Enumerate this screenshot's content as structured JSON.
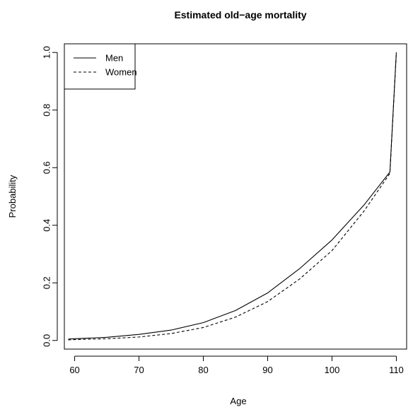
{
  "chart_data": {
    "type": "line",
    "title": "Estimated old−age mortality",
    "xlabel": "Age",
    "ylabel": "Probability",
    "xlim": [
      58.4,
      111.6
    ],
    "ylim": [
      -0.03,
      1.03
    ],
    "xticks": [
      60,
      70,
      80,
      90,
      100,
      110
    ],
    "yticks": [
      0.0,
      0.2,
      0.4,
      0.6,
      0.8,
      1.0
    ],
    "ytick_labels": [
      "0.0",
      "0.2",
      "0.4",
      "0.6",
      "0.8",
      "1.0"
    ],
    "grid": false,
    "legend": {
      "position": "top-left"
    },
    "x": [
      59,
      60,
      65,
      70,
      75,
      80,
      85,
      90,
      95,
      100,
      105,
      109,
      110
    ],
    "series": [
      {
        "name": "Men",
        "line_style": "solid",
        "values": [
          0.005,
          0.006,
          0.011,
          0.021,
          0.036,
          0.062,
          0.104,
          0.165,
          0.25,
          0.349,
          0.471,
          0.585,
          1.0
        ]
      },
      {
        "name": "Women",
        "line_style": "dashed",
        "values": [
          0.002,
          0.003,
          0.006,
          0.012,
          0.024,
          0.045,
          0.081,
          0.135,
          0.214,
          0.312,
          0.45,
          0.58,
          1.0
        ]
      }
    ]
  }
}
